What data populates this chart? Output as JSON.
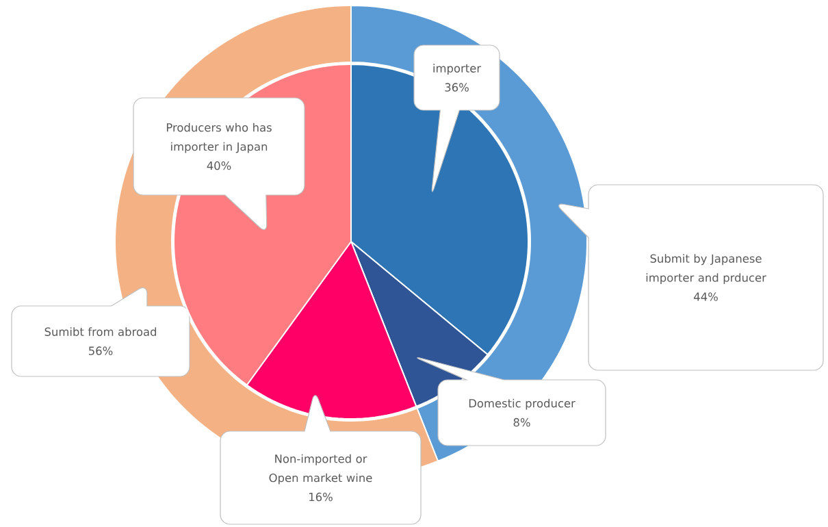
{
  "chart_data": [
    {
      "type": "donut",
      "categories": [
        "Submit by Japanese importer and prducer",
        "Sumibt from abroad"
      ],
      "values": [
        44,
        56
      ],
      "value_labels": [
        "44%",
        "56%"
      ],
      "colors": [
        "#5b9bd5",
        "#f4b183"
      ]
    },
    {
      "type": "pie",
      "categories": [
        "importer",
        "Domestic producer",
        "Non-imported or Open market wine",
        "Producers who has importer in Japan"
      ],
      "values": [
        36,
        8,
        16,
        40
      ],
      "value_labels": [
        "36%",
        "8%",
        "16%",
        "40%"
      ],
      "colors": [
        "#2e75b6",
        "#2f5597",
        "#ff0066",
        "#ff7c80"
      ]
    }
  ]
}
